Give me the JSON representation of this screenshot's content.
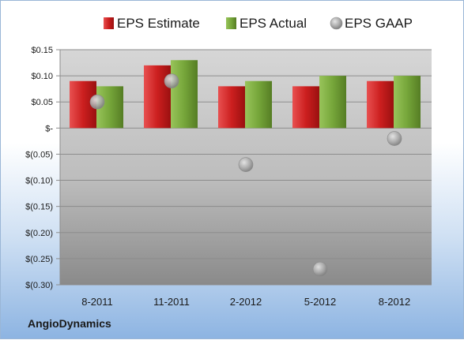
{
  "company": "AngioDynamics",
  "chart_data": {
    "type": "bar",
    "categories": [
      "8-2011",
      "11-2011",
      "2-2012",
      "5-2012",
      "8-2012"
    ],
    "series": [
      {
        "name": "EPS Estimate",
        "kind": "bar",
        "color": "#d42a2a",
        "values": [
          0.09,
          0.12,
          0.08,
          0.08,
          0.09
        ]
      },
      {
        "name": "EPS Actual",
        "kind": "bar",
        "color": "#7daa3f",
        "values": [
          0.08,
          0.13,
          0.09,
          0.1,
          0.1
        ]
      },
      {
        "name": "EPS GAAP",
        "kind": "marker",
        "color": "#a6a6a6",
        "values": [
          0.05,
          0.09,
          -0.07,
          -0.27,
          -0.02
        ]
      }
    ],
    "ylim": [
      -0.3,
      0.15
    ],
    "yticks": [
      0.15,
      0.1,
      0.05,
      0,
      -0.05,
      -0.1,
      -0.15,
      -0.2,
      -0.25,
      -0.3
    ],
    "ytick_labels": [
      "$0.15",
      "$0.10",
      "$0.05",
      "$-",
      "$(0.05)",
      "$(0.10)",
      "$(0.15)",
      "$(0.20)",
      "$(0.25)",
      "$(0.30)"
    ],
    "grid": true,
    "legend": "top"
  }
}
